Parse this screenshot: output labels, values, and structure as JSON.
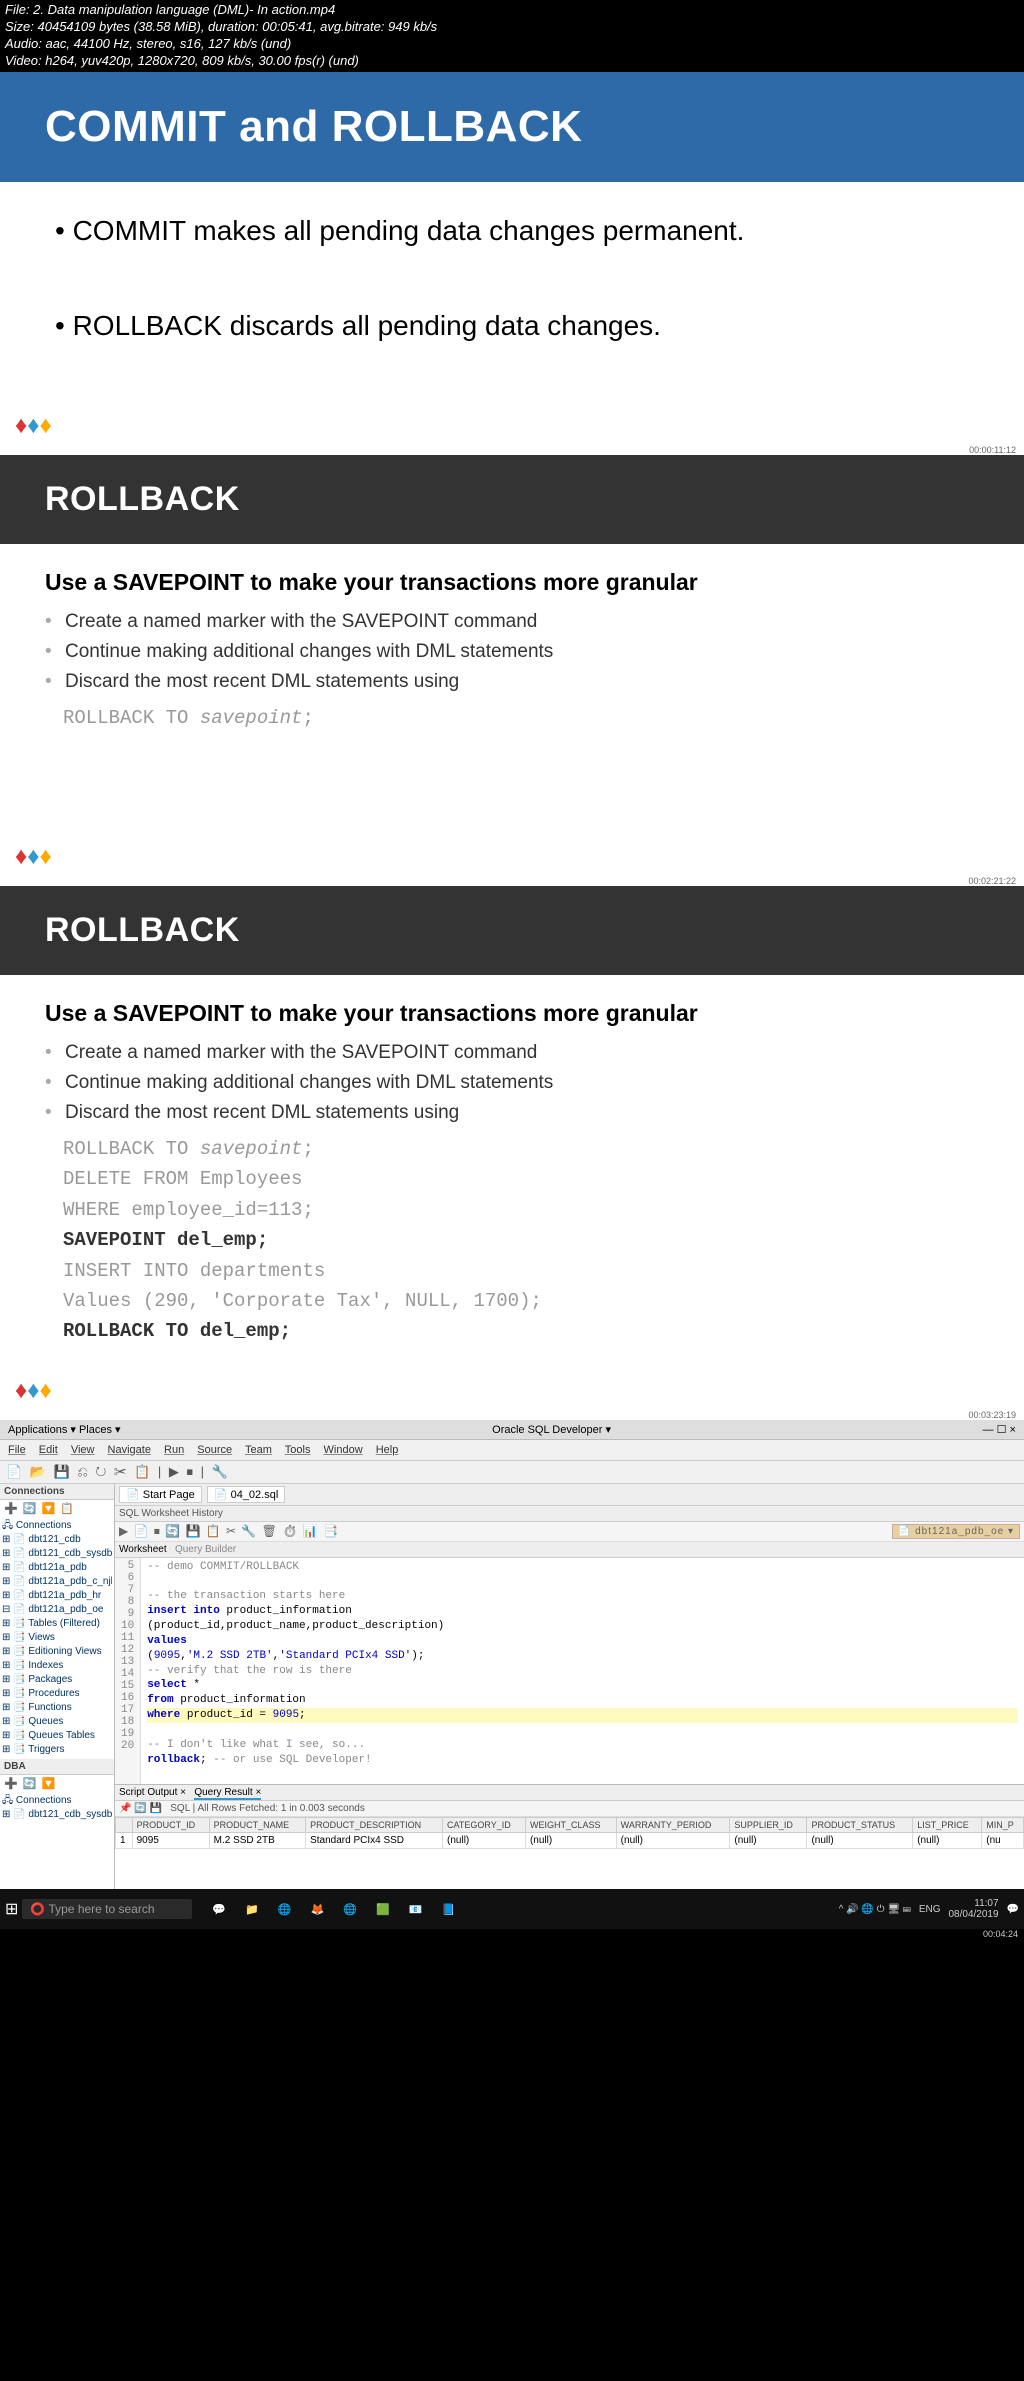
{
  "meta": {
    "l1": "File: 2. Data manipulation language (DML)- In action.mp4",
    "l2": "Size: 40454109 bytes (38.58 MiB), duration: 00:05:41, avg.bitrate: 949 kb/s",
    "l3": "Audio: aac, 44100 Hz, stereo, s16, 127 kb/s (und)",
    "l4": "Video: h264, yuv420p, 1280x720, 809 kb/s, 30.00 fps(r) (und)"
  },
  "slide1": {
    "title": "COMMIT and ROLLBACK",
    "b1": "• COMMIT makes all pending data changes permanent.",
    "b2": "• ROLLBACK discards all pending data changes.",
    "ts": "00:00:11:12"
  },
  "slide2": {
    "title": "ROLLBACK",
    "heading": "Use a SAVEPOINT to make your transactions more granular",
    "li1": "Create a named marker with the SAVEPOINT command",
    "li2": "Continue making additional changes with DML statements",
    "li3": "Discard the most recent DML statements using",
    "code_a": "ROLLBACK TO",
    "code_b": "savepoint",
    "code_c": ";",
    "ts": "00:02:21:22"
  },
  "slide3": {
    "title": "ROLLBACK",
    "heading": "Use a SAVEPOINT to make your transactions more granular",
    "li1": "Create a named marker with the SAVEPOINT command",
    "li2": "Continue making additional changes with DML statements",
    "li3": "Discard the most recent DML statements using",
    "rb_a": "ROLLBACK TO",
    "rb_b": "savepoint",
    "rb_c": ";",
    "c1": "DELETE FROM Employees",
    "c2": "WHERE employee_id=113;",
    "c3": "SAVEPOINT del_emp;",
    "c4": "INSERT INTO departments",
    "c5": "Values (290, 'Corporate Tax', NULL, 1700);",
    "c6": "ROLLBACK TO del_emp;",
    "ts": "00:03:23:19"
  },
  "titlebar": {
    "left": "Applications ▾    Places ▾",
    "center": "Oracle SQL Developer ▾"
  },
  "ide": {
    "menu": [
      "File",
      "Edit",
      "View",
      "Navigate",
      "Run",
      "Source",
      "Team",
      "Tools",
      "Window",
      "Help"
    ],
    "conn_title": "Connections",
    "dba_title": "DBA",
    "tree": [
      "🖧 Connections",
      "⊞ 📄 dbt121_cdb",
      "⊞ 📄 dbt121_cdb_sysdba",
      "⊞ 📄 dbt121a_pdb",
      "⊞ 📄 dbt121a_pdb_c_njb",
      "⊞ 📄 dbt121a_pdb_hr",
      "⊟ 📄 dbt121a_pdb_oe",
      "  ⊞ 📑 Tables (Filtered)",
      "  ⊞ 📑 Views",
      "  ⊞ 📑 Editioning Views",
      "  ⊞ 📑 Indexes",
      "  ⊞ 📑 Packages",
      "  ⊞ 📑 Procedures",
      "  ⊞ 📑 Functions",
      "  ⊞ 📑 Queues",
      "  ⊞ 📑 Queues Tables",
      "  ⊞ 📑 Triggers"
    ],
    "dba_tree": [
      "🖧 Connections",
      "⊞ 📄 dbt121_cdb_sysdba"
    ],
    "tab1": "Start Page",
    "tab2": "04_02.sql",
    "hist": "SQL Worksheet History",
    "connbadge": "dbt121a_pdb_oe",
    "ws": "Worksheet",
    "qb": "Query Builder",
    "lines": [
      "5",
      "6",
      "7",
      "8",
      "9",
      "10",
      "11",
      "12",
      "13",
      "14",
      "15",
      "16",
      "17",
      "18",
      "19",
      "20"
    ],
    "e5": "-- demo COMMIT/ROLLBACK",
    "e6": "",
    "e7": "-- the transaction starts here",
    "e8a": "insert into",
    "e8b": " product_information",
    "e9": "  (product_id,product_name,product_description)",
    "e10": "values",
    "e11a": "  (",
    "e11b": "9095",
    "e11c": ",",
    "e11d": "'M.2 SSD 2TB'",
    "e11e": ",",
    "e11f": "'Standard PCIx4 SSD'",
    "e11g": ");",
    "e12": "-- verify that the row is there",
    "e13a": "select",
    "e13b": " *",
    "e14a": "from",
    "e14b": " product_information",
    "e15a": "where",
    "e15b": " product_id = ",
    "e15c": "9095",
    "e15d": ";",
    "e16": "",
    "e17": "-- I don't like what I see, so...",
    "e18a": "rollback",
    "e18b": "; ",
    "e18c": "-- or use SQL Developer!",
    "otab1": "Script Output ×",
    "otab2": "Query Result ×",
    "ostat": "All Rows Fetched: 1 in 0.003 seconds",
    "cols": [
      "",
      "PRODUCT_ID",
      "PRODUCT_NAME",
      "PRODUCT_DESCRIPTION",
      "CATEGORY_ID",
      "WEIGHT_CLASS",
      "WARRANTY_PERIOD",
      "SUPPLIER_ID",
      "PRODUCT_STATUS",
      "LIST_PRICE",
      "MIN_P"
    ],
    "row": [
      "1",
      "9095",
      "M.2 SSD 2TB",
      "Standard PCIx4 SSD",
      "(null)",
      "(null)",
      "(null)",
      "(null)",
      "(null)",
      "(null)",
      "(nu"
    ]
  },
  "taskbar": {
    "search": "Type here to search",
    "time": "11:07",
    "date": "08/04/2019",
    "lang": "ENG",
    "ts2": "00:04:24"
  }
}
